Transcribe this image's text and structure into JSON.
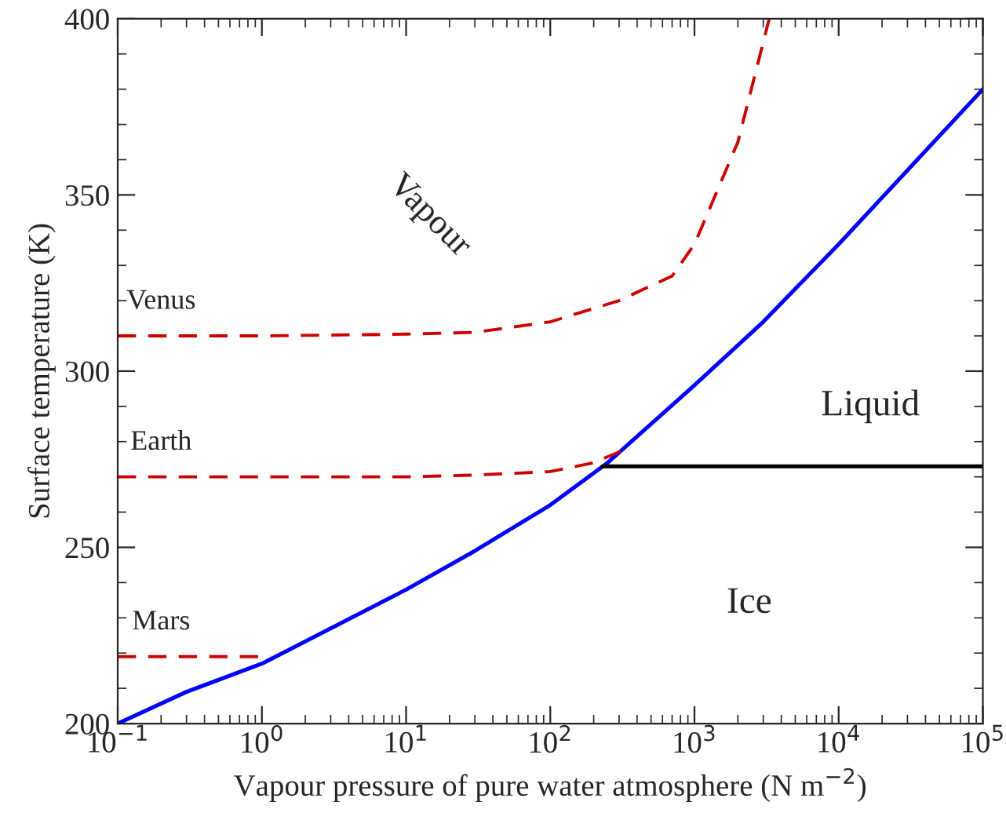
{
  "chart_data": {
    "type": "line",
    "xlabel": "Vapour pressure of pure water atmosphere (N m$^{−2}$)",
    "ylabel": "Surface temperature (K)",
    "log": "x",
    "xlim": [
      0.1,
      100000
    ],
    "ylim": [
      200,
      400
    ],
    "xticks": [
      {
        "value": 0.1,
        "label": "10$^{−1}$"
      },
      {
        "value": 1,
        "label": "10$^{0}$"
      },
      {
        "value": 10,
        "label": "10$^{1}$"
      },
      {
        "value": 100,
        "label": "10$^{2}$"
      },
      {
        "value": 1000,
        "label": "10$^{3}$"
      },
      {
        "value": 10000,
        "label": "10$^{4}$"
      },
      {
        "value": 100000,
        "label": "10$^{5}$"
      }
    ],
    "yticks": [
      200,
      250,
      300,
      350,
      400
    ],
    "grid": false,
    "legend": false,
    "series": [
      {
        "color": "#0000ff",
        "line_style": "solid",
        "x": [
          0.1,
          0.3,
          1,
          3,
          10,
          30,
          100,
          250,
          1000,
          3000,
          10000,
          30000,
          100000
        ],
        "values": [
          200,
          209,
          217,
          227,
          238,
          249,
          262,
          274,
          296,
          314,
          336,
          357,
          380
        ]
      },
      {
        "name": "Venus",
        "color": "#cc0000",
        "line_style": "dashed",
        "x": [
          0.1,
          1,
          10,
          30,
          100,
          300,
          700,
          1000,
          2000,
          3300
        ],
        "values": [
          310,
          310,
          310.5,
          311,
          314,
          320,
          327,
          336,
          365,
          400
        ]
      },
      {
        "name": "Earth",
        "color": "#cc0000",
        "line_style": "dashed",
        "x": [
          0.1,
          1,
          10,
          30,
          100,
          200,
          340
        ],
        "values": [
          270,
          270,
          270,
          270.5,
          271.5,
          274,
          278
        ]
      },
      {
        "name": "Mars",
        "color": "#cc0000",
        "line_style": "dashed",
        "x": [
          0.1,
          1.15
        ],
        "values": [
          219,
          219
        ]
      },
      {
        "color": "#000000",
        "line_style": "solid",
        "x": [
          230,
          100000
        ],
        "values": [
          273,
          273
        ]
      }
    ],
    "annotations": [
      "Vapour",
      "Liquid",
      "Ice"
    ]
  }
}
